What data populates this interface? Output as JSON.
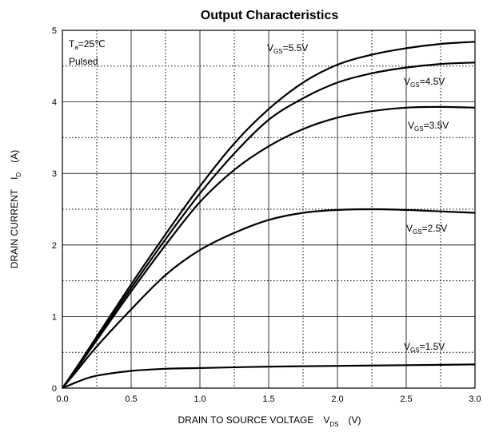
{
  "chart_data": {
    "type": "line",
    "title": "Output Characteristics",
    "xlabel": {
      "main": "DRAIN TO SOURCE VOLTAGE",
      "symbol": "V",
      "sub": "DS",
      "unit": "(V)"
    },
    "ylabel": {
      "main": "DRAIN CURRENT",
      "symbol": "I",
      "sub": "D",
      "unit": "(A)"
    },
    "xlim": [
      0.0,
      3.0
    ],
    "ylim": [
      0,
      5
    ],
    "x_ticks": [
      "0.0",
      "0.5",
      "1.0",
      "1.5",
      "2.0",
      "2.5",
      "3.0"
    ],
    "y_ticks": [
      "0",
      "1",
      "2",
      "3",
      "4",
      "5"
    ],
    "grid": {
      "major": "solid",
      "minor": "dotted"
    },
    "conditions": {
      "temp": {
        "symbol": "T",
        "sub": "a",
        "rest": "=25℃"
      },
      "mode": "Pulsed"
    },
    "series": [
      {
        "name": "V_GS=5.5V",
        "label": {
          "symbol": "V",
          "sub": "GS",
          "rest": "=5.5V"
        },
        "x": [
          0,
          0.1,
          0.25,
          0.5,
          0.75,
          1.0,
          1.25,
          1.5,
          1.75,
          2.0,
          2.25,
          2.5,
          2.75,
          3.0
        ],
        "y": [
          0,
          0.28,
          0.72,
          1.45,
          2.15,
          2.82,
          3.42,
          3.9,
          4.27,
          4.52,
          4.66,
          4.75,
          4.81,
          4.84
        ]
      },
      {
        "name": "V_GS=4.5V",
        "label": {
          "symbol": "V",
          "sub": "GS",
          "rest": "=4.5V"
        },
        "x": [
          0,
          0.1,
          0.25,
          0.5,
          0.75,
          1.0,
          1.25,
          1.5,
          1.75,
          2.0,
          2.25,
          2.5,
          2.75,
          3.0
        ],
        "y": [
          0,
          0.27,
          0.7,
          1.4,
          2.08,
          2.72,
          3.28,
          3.75,
          4.05,
          4.27,
          4.4,
          4.48,
          4.53,
          4.55
        ]
      },
      {
        "name": "V_GS=3.5V",
        "label": {
          "symbol": "V",
          "sub": "GS",
          "rest": "=3.5V"
        },
        "x": [
          0,
          0.1,
          0.25,
          0.5,
          0.75,
          1.0,
          1.25,
          1.5,
          1.75,
          2.0,
          2.25,
          2.5,
          2.75,
          3.0
        ],
        "y": [
          0,
          0.26,
          0.67,
          1.35,
          2.0,
          2.6,
          3.05,
          3.38,
          3.62,
          3.78,
          3.87,
          3.92,
          3.93,
          3.92
        ]
      },
      {
        "name": "V_GS=2.5V",
        "label": {
          "symbol": "V",
          "sub": "GS",
          "rest": "=2.5V"
        },
        "x": [
          0,
          0.1,
          0.25,
          0.5,
          0.75,
          1.0,
          1.25,
          1.5,
          1.75,
          2.0,
          2.25,
          2.5,
          2.75,
          3.0
        ],
        "y": [
          0,
          0.23,
          0.58,
          1.1,
          1.58,
          1.93,
          2.17,
          2.35,
          2.45,
          2.49,
          2.5,
          2.49,
          2.47,
          2.45
        ]
      },
      {
        "name": "V_GS=1.5V",
        "label": {
          "symbol": "V",
          "sub": "GS",
          "rest": "=1.5V"
        },
        "x": [
          0,
          0.1,
          0.2,
          0.3,
          0.5,
          0.75,
          1.0,
          1.5,
          2.0,
          2.5,
          3.0
        ],
        "y": [
          0,
          0.08,
          0.15,
          0.19,
          0.24,
          0.27,
          0.28,
          0.3,
          0.31,
          0.32,
          0.33
        ]
      }
    ]
  }
}
